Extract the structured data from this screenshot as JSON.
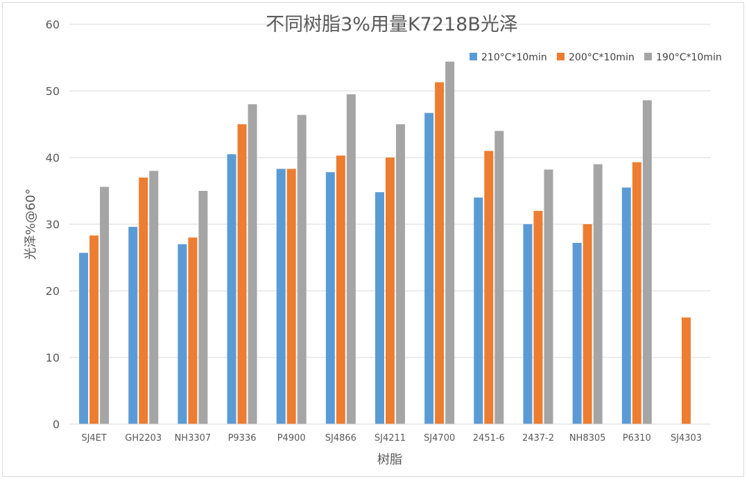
{
  "chart_data": {
    "type": "bar",
    "title": "不同树脂3%用量K7218B光泽",
    "xlabel": "树脂",
    "ylabel": "光泽%@60°",
    "ylim": [
      0,
      60
    ],
    "yticks": [
      0,
      10,
      20,
      30,
      40,
      50,
      60
    ],
    "grid": true,
    "legend_position": "top-right",
    "categories": [
      "SJ4ET",
      "GH2203",
      "NH3307",
      "P9336",
      "P4900",
      "SJ4866",
      "SJ4211",
      "SJ4700",
      "2451-6",
      "2437-2",
      "NH8305",
      "P6310",
      "SJ4303"
    ],
    "series": [
      {
        "name": "210°C*10min",
        "color": "#5b9bd5",
        "values": [
          25.7,
          29.6,
          27.0,
          40.5,
          38.3,
          37.8,
          34.8,
          46.7,
          34.0,
          30.0,
          27.2,
          35.5,
          null
        ]
      },
      {
        "name": "200°C*10min",
        "color": "#ed7d31",
        "values": [
          28.3,
          37.0,
          28.0,
          45.0,
          38.3,
          40.3,
          40.0,
          51.3,
          41.0,
          32.0,
          30.0,
          39.3,
          16.0
        ]
      },
      {
        "name": "190°C*10min",
        "color": "#a5a5a5",
        "values": [
          35.6,
          38.0,
          35.0,
          48.0,
          46.4,
          49.5,
          45.0,
          54.4,
          44.0,
          38.2,
          39.0,
          48.6,
          null
        ]
      }
    ]
  }
}
